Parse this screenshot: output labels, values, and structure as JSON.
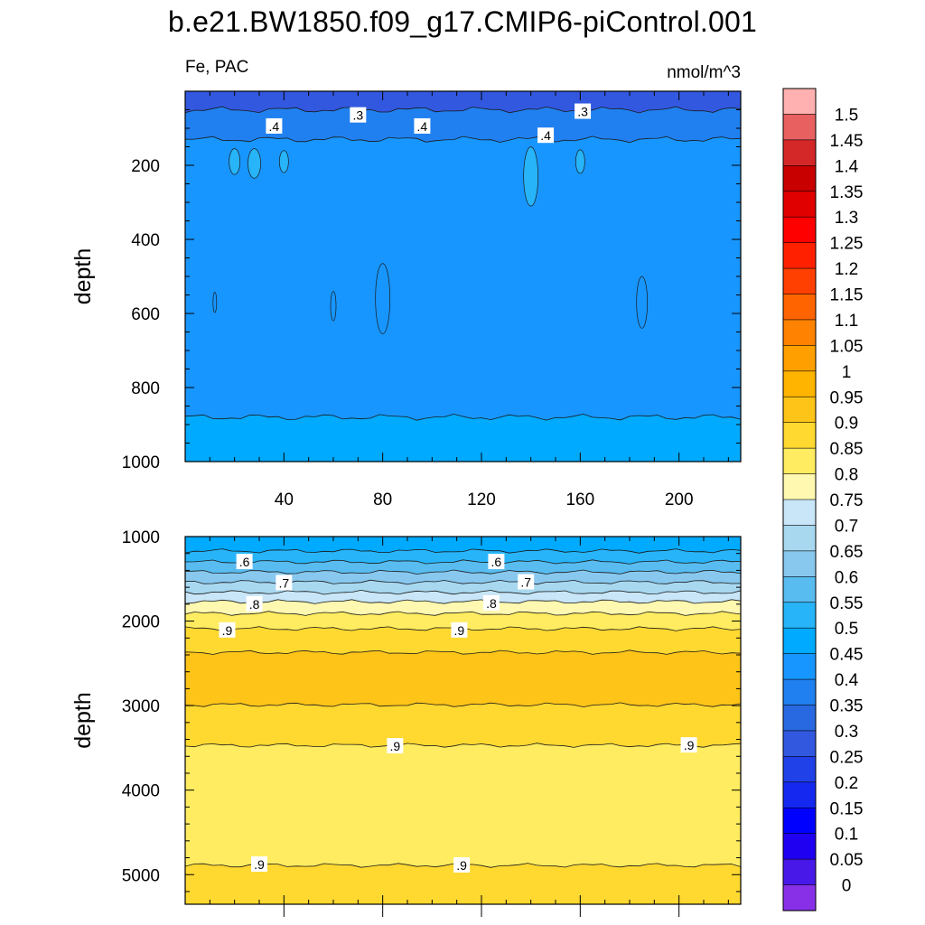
{
  "figure": {
    "title": "b.e21.BW1850.f09_g17.CMIP6-piControl.001",
    "left_label": "Fe, PAC",
    "right_label": "nmol/m^3"
  },
  "chart_data": [
    {
      "type": "contour",
      "panel": "upper",
      "variable": "Fe",
      "region": "PAC",
      "units": "nmol/m^3",
      "xlabel": "",
      "ylabel": "depth",
      "xlim": [
        0,
        225
      ],
      "ylim": [
        1000,
        0
      ],
      "y_reversed": true,
      "xticks": [
        40,
        80,
        120,
        160,
        200
      ],
      "yticks": [
        200,
        400,
        600,
        800,
        1000
      ],
      "contour_labels": [
        {
          "text": ".4",
          "x": 36,
          "depth": 95
        },
        {
          "text": ".3",
          "x": 70,
          "depth": 65
        },
        {
          "text": ".4",
          "x": 96,
          "depth": 95
        },
        {
          "text": ".4",
          "x": 146,
          "depth": 120
        },
        {
          "text": ".3",
          "x": 161,
          "depth": 55
        }
      ],
      "bands": [
        {
          "depth": [
            0,
            50
          ],
          "value": 0.275
        },
        {
          "depth": [
            50,
            130
          ],
          "value": 0.375
        },
        {
          "depth": [
            130,
            880
          ],
          "value": 0.425
        },
        {
          "depth": [
            880,
            1000
          ],
          "value": 0.475
        }
      ]
    },
    {
      "type": "contour",
      "panel": "lower",
      "variable": "Fe",
      "region": "PAC",
      "units": "nmol/m^3",
      "xlabel": "",
      "ylabel": "depth",
      "xlim": [
        0,
        225
      ],
      "ylim": [
        5350,
        1000
      ],
      "y_reversed": true,
      "yticks": [
        1000,
        2000,
        3000,
        4000,
        5000
      ],
      "contour_labels": [
        {
          "text": ".6",
          "x": 24,
          "depth": 1300
        },
        {
          "text": ".6",
          "x": 126,
          "depth": 1300
        },
        {
          "text": ".7",
          "x": 40,
          "depth": 1550
        },
        {
          "text": ".7",
          "x": 138,
          "depth": 1540
        },
        {
          "text": ".8",
          "x": 28,
          "depth": 1800
        },
        {
          "text": ".8",
          "x": 124,
          "depth": 1790
        },
        {
          "text": ".9",
          "x": 17,
          "depth": 2110
        },
        {
          "text": ".9",
          "x": 111,
          "depth": 2110
        },
        {
          "text": ".9",
          "x": 85,
          "depth": 3480
        },
        {
          "text": ".9",
          "x": 204,
          "depth": 3470
        },
        {
          "text": ".9",
          "x": 30,
          "depth": 4880
        },
        {
          "text": ".9",
          "x": 112,
          "depth": 4890
        }
      ],
      "bands": [
        {
          "depth": [
            1000,
            1170
          ],
          "value": 0.475
        },
        {
          "depth": [
            1170,
            1300
          ],
          "value": 0.525
        },
        {
          "depth": [
            1300,
            1420
          ],
          "value": 0.575
        },
        {
          "depth": [
            1420,
            1540
          ],
          "value": 0.625
        },
        {
          "depth": [
            1540,
            1660
          ],
          "value": 0.675
        },
        {
          "depth": [
            1660,
            1770
          ],
          "value": 0.725
        },
        {
          "depth": [
            1770,
            1910
          ],
          "value": 0.775
        },
        {
          "depth": [
            1910,
            2090
          ],
          "value": 0.825
        },
        {
          "depth": [
            2090,
            2370
          ],
          "value": 0.875
        },
        {
          "depth": [
            2370,
            2990
          ],
          "value": 0.925
        },
        {
          "depth": [
            2990,
            3470
          ],
          "value": 0.875
        },
        {
          "depth": [
            3470,
            4890
          ],
          "value": 0.825
        },
        {
          "depth": [
            4890,
            5350
          ],
          "value": 0.875
        }
      ]
    }
  ],
  "colorbar": {
    "labels": [
      "1.5",
      "1.45",
      "1.4",
      "1.35",
      "1.3",
      "1.25",
      "1.2",
      "1.15",
      "1.1",
      "1.05",
      "1",
      "0.95",
      "0.9",
      "0.85",
      "0.8",
      "0.75",
      "0.7",
      "0.65",
      "0.6",
      "0.55",
      "0.5",
      "0.45",
      "0.4",
      "0.35",
      "0.3",
      "0.25",
      "0.2",
      "0.15",
      "0.1",
      "0.05",
      "0"
    ],
    "colors": [
      "#ffb0b0",
      "#e86060",
      "#d42828",
      "#c80000",
      "#e00000",
      "#ff0000",
      "#ff2000",
      "#ff4000",
      "#ff6400",
      "#ff8200",
      "#ffa000",
      "#ffb400",
      "#ffc418",
      "#ffd830",
      "#ffec60",
      "#fff8b0",
      "#c8e6f8",
      "#a8d8f0",
      "#88c8ee",
      "#58bcf0",
      "#28b4f8",
      "#00aaff",
      "#1896ff",
      "#2080f0",
      "#2868e0",
      "#3258e0",
      "#2040e8",
      "#1428f0",
      "#0000ff",
      "#2000f0",
      "#4818e8",
      "#8830e8"
    ]
  }
}
